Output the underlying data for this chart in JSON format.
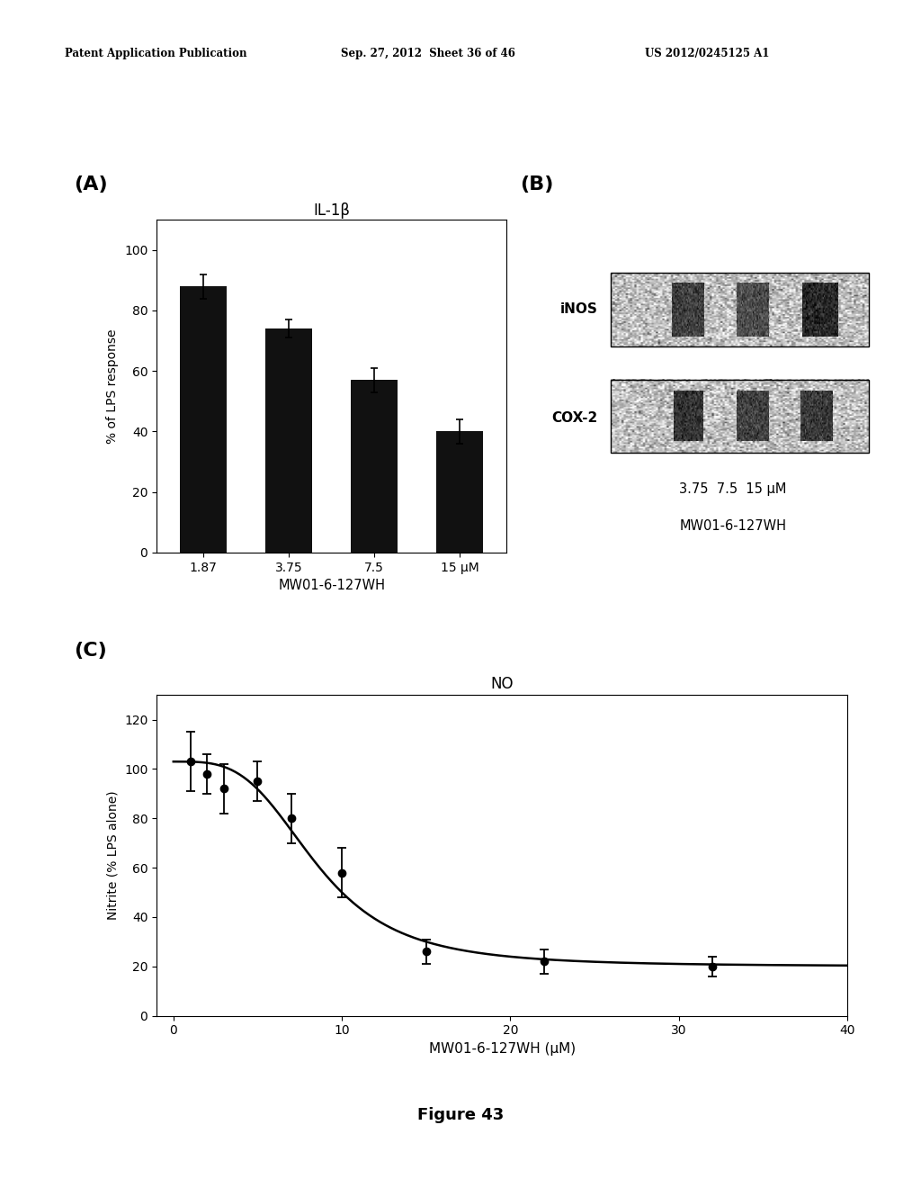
{
  "header_left": "Patent Application Publication",
  "header_mid": "Sep. 27, 2012  Sheet 36 of 46",
  "header_right": "US 2012/0245125 A1",
  "panel_A_title": "IL-1β",
  "panel_A_xlabel": "MW01-6-127WH",
  "panel_A_ylabel": "% of LPS response",
  "panel_A_xtick_labels": [
    "1.87",
    "3.75",
    "7.5",
    "15 μM"
  ],
  "panel_A_bar_values": [
    88,
    74,
    57,
    40
  ],
  "panel_A_bar_errors": [
    4,
    3,
    4,
    4
  ],
  "panel_A_ylim": [
    0,
    110
  ],
  "panel_A_yticks": [
    0,
    20,
    40,
    60,
    80,
    100
  ],
  "panel_B_inos_label": "iNOS",
  "panel_B_cox2_label": "COX-2",
  "panel_B_xlabel_line1": "3.75  7.5  15 μM",
  "panel_B_xlabel_line2": "MW01-6-127WH",
  "panel_C_title": "NO",
  "panel_C_xlabel": "MW01-6-127WH (μM)",
  "panel_C_ylabel": "Nitrite (% LPS alone)",
  "panel_C_x": [
    1,
    2,
    3,
    5,
    7,
    10,
    15,
    22,
    32
  ],
  "panel_C_y": [
    103,
    98,
    92,
    95,
    80,
    58,
    26,
    22,
    20
  ],
  "panel_C_yerr": [
    12,
    8,
    10,
    8,
    10,
    10,
    5,
    5,
    4
  ],
  "panel_C_xlim": [
    -1,
    40
  ],
  "panel_C_ylim": [
    0,
    130
  ],
  "panel_C_xticks": [
    0,
    10,
    20,
    30,
    40
  ],
  "panel_C_yticks": [
    0,
    20,
    40,
    60,
    80,
    100,
    120
  ],
  "figure_label": "Figure 43",
  "background_color": "#ffffff",
  "bar_color": "#111111",
  "line_color": "#000000",
  "text_color": "#000000"
}
